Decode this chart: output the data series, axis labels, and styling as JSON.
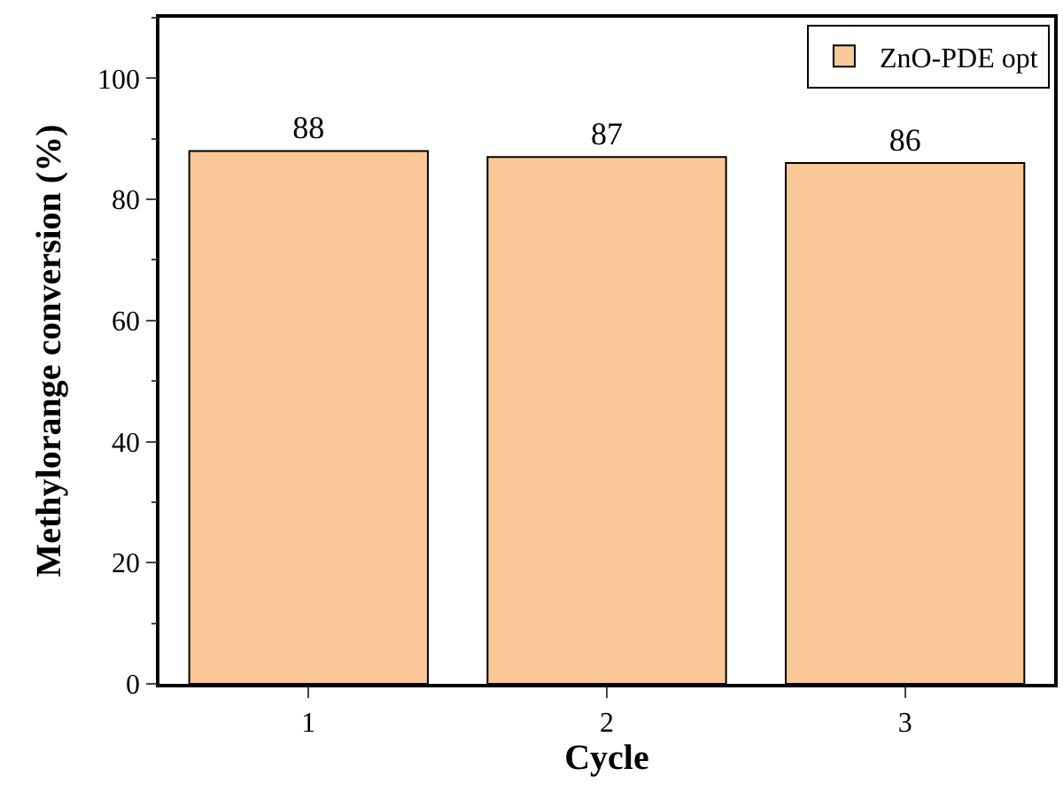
{
  "chart_data": {
    "type": "bar",
    "xlabel": "Cycle",
    "ylabel": "Methylorange conversion (%)",
    "categories": [
      "1",
      "2",
      "3"
    ],
    "series": [
      {
        "name": "ZnO-PDE opt",
        "color": "#f9c896",
        "values": [
          88,
          87,
          86
        ]
      }
    ],
    "ylim": [
      0,
      110
    ],
    "yticks": [
      0,
      20,
      40,
      60,
      80,
      100
    ],
    "data_labels": true,
    "legend": "top right"
  }
}
